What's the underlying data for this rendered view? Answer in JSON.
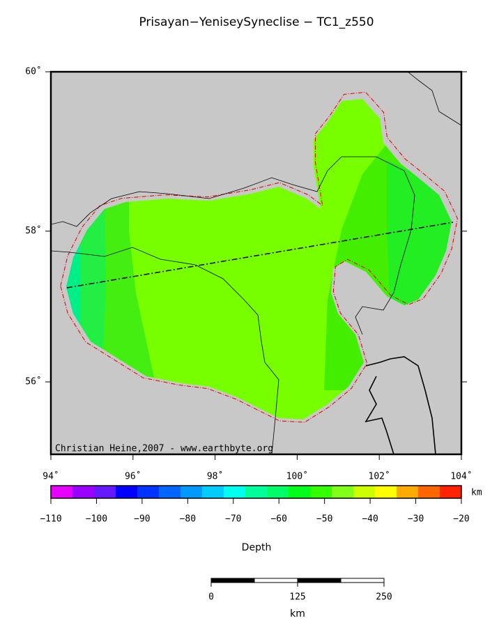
{
  "title": "Prisayan−YeniseySyneclise − TC1_z550",
  "map": {
    "lonlim": [
      94,
      104
    ],
    "latlim": [
      55,
      60
    ],
    "lon_ticks": [
      {
        "value": 94,
        "label": "94˚"
      },
      {
        "value": 96,
        "label": "96˚"
      },
      {
        "value": 98,
        "label": "98˚"
      },
      {
        "value": 100,
        "label": "100˚"
      },
      {
        "value": 102,
        "label": "102˚"
      },
      {
        "value": 104,
        "label": "104˚"
      }
    ],
    "lat_ticks": [
      {
        "value": 56,
        "label": "56˚"
      },
      {
        "value": 58,
        "label": "58˚"
      },
      {
        "value": 60,
        "label": "60˚"
      }
    ],
    "credit": "Christian Heine,2007 - www.earthbyte.org"
  },
  "colorbar": {
    "unit": "km",
    "label": "Depth",
    "colors": [
      "#e600ff",
      "#9900ff",
      "#6619ff",
      "#0000ff",
      "#0033ff",
      "#0066ff",
      "#0099ff",
      "#00ccff",
      "#00ffee",
      "#00ff99",
      "#00ff66",
      "#00ff19",
      "#33ff00",
      "#80ff19",
      "#ccff00",
      "#ffff00",
      "#ffaa00",
      "#ff6600",
      "#ff2200"
    ],
    "ticks": [
      {
        "value": -110,
        "label": "−110"
      },
      {
        "value": -100,
        "label": "−100"
      },
      {
        "value": -90,
        "label": "−90"
      },
      {
        "value": -80,
        "label": "−80"
      },
      {
        "value": -70,
        "label": "−70"
      },
      {
        "value": -60,
        "label": "−60"
      },
      {
        "value": -50,
        "label": "−50"
      },
      {
        "value": -40,
        "label": "−40"
      },
      {
        "value": -30,
        "label": "−30"
      },
      {
        "value": -20,
        "label": "−20"
      }
    ]
  },
  "scalebar": {
    "ticks": [
      0,
      125,
      250
    ],
    "unit": "km"
  }
}
